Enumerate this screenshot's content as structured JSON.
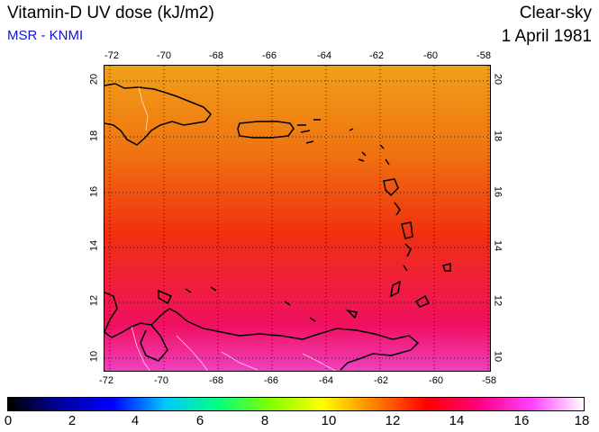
{
  "header": {
    "title": "Vitamin-D UV dose (kJ/m2)",
    "subtitle": "MSR - KNMI",
    "sky_condition": "Clear-sky",
    "date": "1 April 1981"
  },
  "map": {
    "lon_range": [
      -72,
      -58
    ],
    "lat_range": [
      9.5,
      20.5
    ],
    "lon_ticks": [
      "-72",
      "-70",
      "-68",
      "-66",
      "-64",
      "-62",
      "-60",
      "-58"
    ],
    "lat_ticks": [
      "20",
      "18",
      "16",
      "14",
      "12",
      "10"
    ],
    "grid": "dotted",
    "colors": {
      "north_dose": "#f0a018",
      "mid_dose": "#f03010",
      "south_dose": "#f01060",
      "land_outline": "#000000",
      "border": "#ffffff"
    }
  },
  "colorbar": {
    "ticks": [
      "0",
      "2",
      "4",
      "6",
      "8",
      "10",
      "12",
      "14",
      "16",
      "18"
    ],
    "range": [
      0,
      18
    ],
    "colors": [
      "#000000",
      "#0000a0",
      "#0000ff",
      "#00c8ff",
      "#00ff80",
      "#80ff00",
      "#ffff00",
      "#ff8000",
      "#ff0000",
      "#ff0080",
      "#ff40ff",
      "#ffffff"
    ]
  }
}
